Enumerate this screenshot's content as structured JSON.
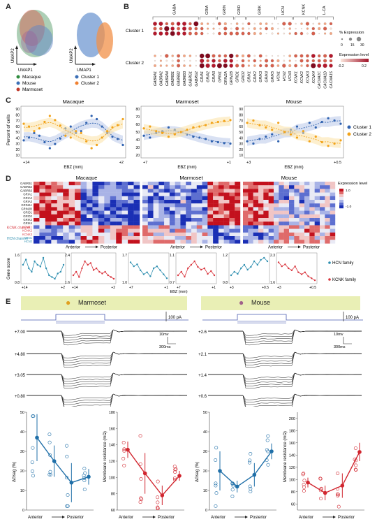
{
  "panels": {
    "A": "A",
    "B": "B",
    "C": "C",
    "D": "D",
    "E": "E"
  },
  "panelA": {
    "umap1": "UMAP1",
    "umap2": "UMAP2",
    "legend_species": [
      {
        "label": "Macaque",
        "color": "#2e8b3e"
      },
      {
        "label": "Mouse",
        "color": "#3b6fb6"
      },
      {
        "label": "Marmoset",
        "color": "#c0392b"
      }
    ],
    "legend_clusters": [
      {
        "label": "Cluster 1",
        "color": "#3b6fb6"
      },
      {
        "label": "Cluster 2",
        "color": "#f08030"
      }
    ]
  },
  "panelB": {
    "families": [
      "GABAr",
      "GRIA",
      "GRIN",
      "GRID",
      "GRIK",
      "HCN",
      "KCNK",
      "L-CA"
    ],
    "cluster_labels": [
      "Cluster 1",
      "Cluster 2"
    ],
    "genes": [
      "GABRA1",
      "GABRA2",
      "GABRA4",
      "GABRB1",
      "GABRB2",
      "GABRB3",
      "GABRG1",
      "GABRG2",
      "GRIA1",
      "GRIA2",
      "GRIA3",
      "GRIN1",
      "GRIN2A",
      "GRIN2B",
      "GRID1",
      "GRID2",
      "GRIK1",
      "GRIK2",
      "GRIK3",
      "GRIK4",
      "GRIK5",
      "HCN1",
      "HCN2",
      "HCN3",
      "KCNK1",
      "KCNK2",
      "KCNK3",
      "KCNK4",
      "CACNA1C",
      "CACNA1D",
      "CACNA1S"
    ],
    "pct_title": "% Expression",
    "pct_ticks": [
      "0",
      "15",
      "30"
    ],
    "expr_title": "Expression level",
    "expr_ticks": [
      "-0.2",
      "0.2"
    ]
  },
  "panelC": {
    "ylabel": "Percent of cells",
    "xlabel": "EBZ (mm)",
    "legend": [
      {
        "label": "Cluster 1",
        "color": "#2f62b0"
      },
      {
        "label": "Cluster 2",
        "color": "#f2a31a"
      }
    ],
    "charts": [
      {
        "title": "Macaque",
        "yticks": [
          "90",
          "80",
          "70",
          "60",
          "50",
          "40",
          "30",
          "20",
          "10"
        ],
        "x_left": "+14",
        "x_right": "+2",
        "c1": [
          32,
          38,
          48,
          42,
          28,
          15,
          24,
          36,
          58,
          62,
          48,
          52,
          70,
          85,
          78,
          62,
          48,
          40,
          35,
          22
        ],
        "c2": [
          68,
          62,
          52,
          58,
          72,
          85,
          76,
          64,
          42,
          38,
          52,
          48,
          30,
          15,
          22,
          38,
          52,
          60,
          65,
          78
        ]
      },
      {
        "title": "Marmoset",
        "yticks": [
          "80",
          "70",
          "60",
          "50",
          "40",
          "30",
          "20"
        ],
        "x_left": "+7",
        "x_right": "+1",
        "c1": [
          42,
          38,
          48,
          52,
          60,
          55,
          50,
          45,
          40,
          38,
          35,
          30,
          28,
          26,
          25
        ],
        "c2": [
          58,
          62,
          52,
          48,
          40,
          45,
          50,
          55,
          60,
          62,
          65,
          70,
          72,
          74,
          76
        ]
      },
      {
        "title": "Mouse",
        "yticks": [
          "90",
          "80",
          "70",
          "60",
          "50",
          "40",
          "30",
          "20",
          "10"
        ],
        "x_left": "+3",
        "x_right": "+0.5",
        "c1": [
          30,
          25,
          35,
          40,
          45,
          30,
          50,
          55,
          62,
          48,
          70,
          60,
          72,
          80,
          75,
          68
        ],
        "c2": [
          70,
          75,
          65,
          60,
          55,
          70,
          50,
          45,
          38,
          52,
          30,
          40,
          28,
          20,
          25,
          32
        ]
      }
    ]
  },
  "panelD": {
    "titles": [
      "Macaque",
      "Marmoset",
      "Mouse"
    ],
    "genes": [
      "GABRB1",
      "GABRB2",
      "GABRB3",
      "GRIA1",
      "GRIA2",
      "GRIA3",
      "GRIN2A",
      "GRIN2B",
      "GRID1",
      "GRID2",
      "GRIK2",
      "GRIK4",
      "KCNK1",
      "KCNK2",
      "KCNK3",
      "HCN1",
      "HCN2"
    ],
    "kcnk_label": "KCNK channel",
    "hcn_label": "HCN channel",
    "axis_label_anterior": "Anterior",
    "axis_label_posterior": "Posterior",
    "scale_title": "Expression level",
    "scale_ticks": [
      "1.0",
      "-1.0"
    ],
    "gene_score": "Gene score",
    "ebz": "EBZ (mm)",
    "legend_hcn": "HCN family",
    "legend_kcnk": "KCNK family",
    "mini": [
      {
        "ymin": "0.8",
        "ymax": "1.6",
        "xl": "+14",
        "xr": "+2",
        "color": "#2f8fb0",
        "vals": [
          1.3,
          1.45,
          1.2,
          1.1,
          1.4,
          1.3,
          1.25,
          1.5,
          1.2,
          1.0,
          0.95,
          0.9,
          1.05,
          1.1,
          1.3
        ]
      },
      {
        "ymin": "1.6",
        "ymax": "2.4",
        "xl": "+14",
        "xr": "+2",
        "color": "#d9363e",
        "vals": [
          1.8,
          1.9,
          1.75,
          2.0,
          2.2,
          2.1,
          2.15,
          1.95,
          2.0,
          1.9,
          1.85,
          1.9,
          1.8,
          1.75,
          1.7
        ]
      },
      {
        "ymin": "1.0",
        "ymax": "1.7",
        "xl": "+7",
        "xr": "+1",
        "color": "#2f8fb0",
        "vals": [
          1.5,
          1.4,
          1.45,
          1.3,
          1.2,
          1.25,
          1.15,
          1.35,
          1.4,
          1.3,
          1.2,
          1.1
        ]
      },
      {
        "ymin": "0.7",
        "ymax": "1.1",
        "xl": "+7",
        "xr": "+1",
        "color": "#d9363e",
        "vals": [
          0.8,
          0.85,
          0.78,
          0.9,
          0.95,
          1.0,
          0.92,
          0.88,
          0.9,
          0.82,
          0.86,
          0.8
        ]
      },
      {
        "ymin": "0.8",
        "ymax": "1.2",
        "xl": "+3",
        "xr": "+0.5",
        "color": "#2f8fb0",
        "vals": [
          0.9,
          0.95,
          0.92,
          1.0,
          1.05,
          0.98,
          1.02,
          1.1,
          1.05,
          1.12,
          1.15,
          1.1
        ]
      },
      {
        "ymin": "1.6",
        "ymax": "2.3",
        "xl": "+3",
        "xr": "+0.5",
        "color": "#d9363e",
        "vals": [
          2.1,
          2.0,
          2.05,
          1.95,
          1.9,
          2.0,
          1.85,
          1.8,
          1.85,
          1.75,
          1.7,
          1.65
        ]
      }
    ]
  },
  "panelE": {
    "marmoset_title": "Marmoset",
    "mouse_title": "Mouse",
    "scale_current": "100 pA",
    "scale_voltage": "10mv",
    "scale_time": "300ms",
    "marmoset_depths": [
      "+7.00",
      "+4.80",
      "+3.05",
      "+0.80"
    ],
    "mouse_depths": [
      "+2.6",
      "+2.1",
      "+1.4",
      "+0.6"
    ],
    "anterior": "Anterior",
    "posterior": "Posterior",
    "charts": [
      {
        "ylabel": "ΔGsag (%)",
        "yticks": [
          "0",
          "10",
          "20",
          "30",
          "40",
          "50"
        ],
        "ymax": 50,
        "color": "#1f6fa8",
        "mean": [
          37,
          25,
          14,
          17
        ],
        "err": [
          12,
          8,
          10,
          4
        ]
      },
      {
        "ylabel": "Membrane resistance (mΩ)",
        "yticks": [
          "60",
          "80",
          "100",
          "120",
          "140",
          "160",
          "180"
        ],
        "ymin": 60,
        "ymax": 180,
        "color": "#d1262f",
        "mean": [
          134,
          105,
          78,
          102
        ],
        "err": [
          10,
          25,
          12,
          6
        ]
      },
      {
        "ylabel": "ΔGsag (%)",
        "yticks": [
          "0",
          "10",
          "20",
          "30",
          "40",
          "50"
        ],
        "ymax": 50,
        "color": "#1f6fa8",
        "mean": [
          20,
          12,
          18,
          30
        ],
        "err": [
          10,
          3,
          6,
          4
        ]
      },
      {
        "ylabel": "Membrane resistance (mΩ)",
        "yticks": [
          "60",
          "80",
          "100",
          "120",
          "140",
          "160",
          "180",
          "200"
        ],
        "ymin": 50,
        "ymax": 210,
        "color": "#d1262f",
        "mean": [
          95,
          78,
          90,
          145
        ],
        "err": [
          8,
          12,
          20,
          15
        ]
      }
    ]
  }
}
